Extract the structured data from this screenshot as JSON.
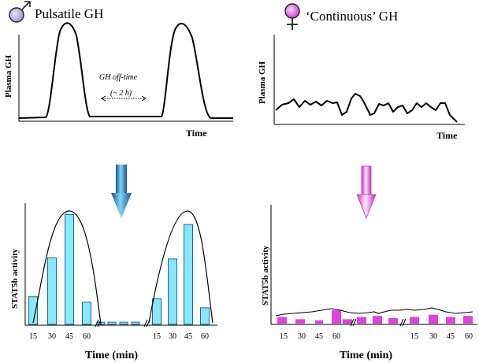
{
  "male_panel": {
    "symbol": "♂",
    "title": "Pulsatile GH",
    "top_plot": {
      "ylabel": "Plasma GH",
      "xlabel": "Time",
      "offtime_label": "GH off-time",
      "offtime_value": "(~ 2 h)"
    },
    "bottom_plot": {
      "ylabel": "STAT5b activity",
      "xlabel": "Time (min)",
      "ticks_left": [
        "15",
        "30",
        "45",
        "60"
      ],
      "ticks_right": [
        "15",
        "30",
        "45",
        "60"
      ]
    },
    "arrow_color": "#1d5c9e"
  },
  "female_panel": {
    "symbol": "♀",
    "title": "‘Continuous’ GH",
    "top_plot": {
      "ylabel": "Plasma GH",
      "xlabel": "Time"
    },
    "bottom_plot": {
      "ylabel": "STAT5b activity",
      "xlabel": "Time (min)",
      "ticks_left": [
        "15",
        "30",
        "45",
        "60"
      ],
      "ticks_right": [
        "15",
        "30",
        "45",
        "60"
      ]
    },
    "arrow_color": "#cc33cc"
  },
  "colors": {
    "male_bar_fill": "#86e8f8",
    "male_bar_stroke": "#2a5fa8",
    "female_bar_fill": "#dd44dd",
    "male_symbol": "#b8b8e8",
    "female_symbol": "#dd55dd"
  },
  "chart_data": [
    {
      "type": "bar",
      "panel": "male",
      "ylabel": "STAT5b activity",
      "xlabel": "Time (min)",
      "categories": [
        "15",
        "30",
        "45",
        "60",
        "",
        "",
        "",
        "",
        "15",
        "30",
        "45",
        "60",
        ""
      ],
      "values": [
        0.25,
        0.6,
        0.99,
        0.2,
        0.02,
        0.02,
        0.02,
        0.02,
        0.23,
        0.59,
        0.9,
        0.15,
        0.0
      ],
      "ylim": [
        0,
        1.1
      ]
    },
    {
      "type": "bar",
      "panel": "female",
      "ylabel": "STAT5b activity",
      "xlabel": "Time (min)",
      "categories": [
        "",
        "15",
        "30",
        "45",
        "60",
        "",
        "",
        "",
        "15",
        "30",
        "45",
        "60",
        ""
      ],
      "values": [
        0.06,
        0.04,
        0.03,
        0.12,
        0.04,
        0.06,
        0.07,
        0.05,
        0.06,
        0.08,
        0.06,
        0.07,
        0.0
      ],
      "ylim": [
        0,
        1.1
      ]
    }
  ]
}
